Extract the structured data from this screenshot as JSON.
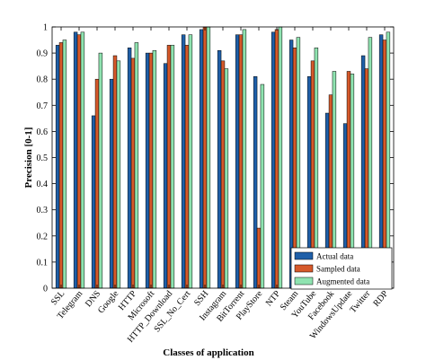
{
  "chart_data": {
    "type": "bar",
    "title": "",
    "xlabel": "Classes of application",
    "ylabel": "Precision [0-1]",
    "ylim": [
      0,
      1
    ],
    "yticks": [
      "0",
      "0.1",
      "0.2",
      "0.3",
      "0.4",
      "0.5",
      "0.6",
      "0.7",
      "0.8",
      "0.9",
      "1"
    ],
    "grid": false,
    "legend_position": "bottom-right",
    "categories": [
      "SSL",
      "Telegram",
      "DNS",
      "Google",
      "HTTP",
      "Microsoft",
      "HTTP_Download",
      "SSL_No_Cert",
      "SSH",
      "Instagram",
      "BitTorrent",
      "PlayStore",
      "NTP",
      "Steam",
      "YouTube",
      "Facebook",
      "WindowsUpdate",
      "Twitter",
      "RDP"
    ],
    "series": [
      {
        "name": "Actual data",
        "color": "#1f5fa8",
        "values": [
          0.93,
          0.98,
          0.66,
          0.8,
          0.92,
          0.9,
          0.86,
          0.97,
          0.99,
          0.91,
          0.97,
          0.81,
          0.98,
          0.95,
          0.81,
          0.67,
          0.63,
          0.89,
          0.97
        ]
      },
      {
        "name": "Sampled data",
        "color": "#d6592a",
        "values": [
          0.94,
          0.97,
          0.8,
          0.89,
          0.88,
          0.9,
          0.93,
          0.93,
          1.0,
          0.87,
          0.97,
          0.23,
          0.99,
          0.92,
          0.87,
          0.74,
          0.83,
          0.84,
          0.95
        ]
      },
      {
        "name": "Augmented data",
        "color": "#8fe3b0",
        "values": [
          0.95,
          0.98,
          0.9,
          0.87,
          0.94,
          0.91,
          0.93,
          0.97,
          1.0,
          0.84,
          0.99,
          0.78,
          1.0,
          0.96,
          0.92,
          0.83,
          0.82,
          0.96,
          0.98
        ]
      }
    ]
  }
}
